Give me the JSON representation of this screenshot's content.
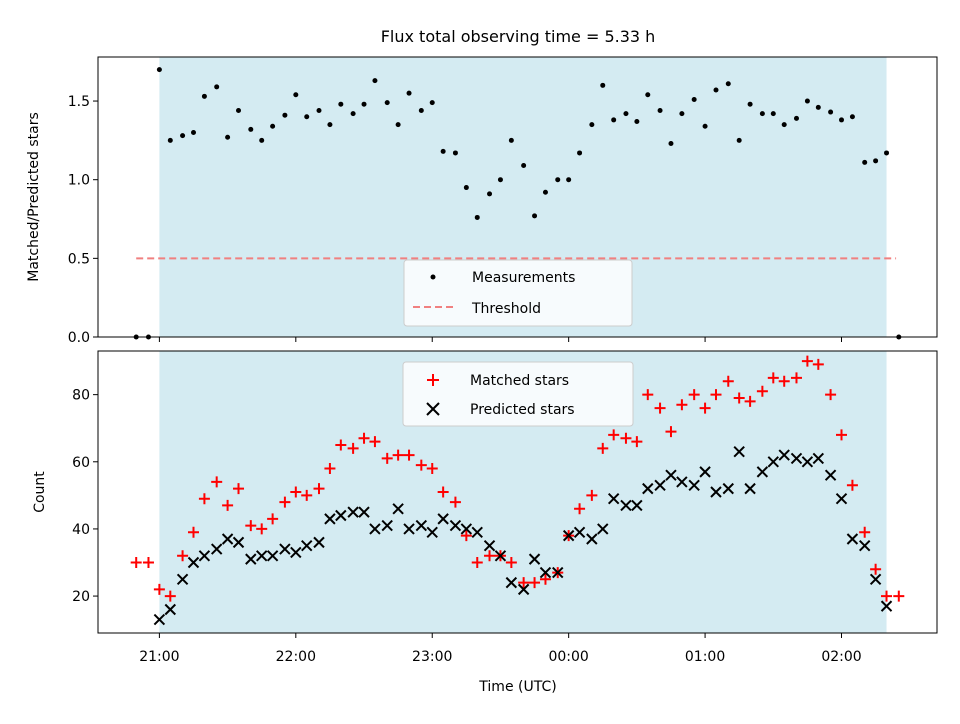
{
  "chart_data": {
    "title": "Flux total observing time = 5.33 h",
    "xlabel": "Time (UTC)",
    "x_tick_labels": [
      "21:00",
      "22:00",
      "23:00",
      "00:00",
      "01:00",
      "02:00"
    ],
    "x_tick_values_h": [
      21,
      22,
      23,
      24,
      25,
      26
    ],
    "xlim_h": [
      20.55,
      26.7
    ],
    "shaded_span_h": [
      21.0,
      26.33
    ],
    "shade_color": "#d4ebf2",
    "top": {
      "type": "scatter",
      "ylabel": "Matched/Predicted stars",
      "ylim": [
        0,
        1.78
      ],
      "y_ticks": [
        "0.0",
        "0.5",
        "1.0",
        "1.5"
      ],
      "y_tick_values": [
        0.0,
        0.5,
        1.0,
        1.5
      ],
      "legend_position": "lower-center",
      "threshold": {
        "name": "Threshold",
        "value": 0.5,
        "x_range_h": [
          20.83,
          26.4
        ],
        "color": "#f08080"
      },
      "measurements": {
        "name": "Measurements",
        "color": "#000000",
        "points": [
          [
            20.83,
            0.0
          ],
          [
            20.92,
            0.0
          ],
          [
            21.0,
            1.7
          ],
          [
            21.08,
            1.25
          ],
          [
            21.17,
            1.28
          ],
          [
            21.25,
            1.3
          ],
          [
            21.33,
            1.53
          ],
          [
            21.42,
            1.59
          ],
          [
            21.5,
            1.27
          ],
          [
            21.58,
            1.44
          ],
          [
            21.67,
            1.32
          ],
          [
            21.75,
            1.25
          ],
          [
            21.83,
            1.34
          ],
          [
            21.92,
            1.41
          ],
          [
            22.0,
            1.54
          ],
          [
            22.08,
            1.4
          ],
          [
            22.17,
            1.44
          ],
          [
            22.25,
            1.35
          ],
          [
            22.33,
            1.48
          ],
          [
            22.42,
            1.42
          ],
          [
            22.5,
            1.48
          ],
          [
            22.58,
            1.63
          ],
          [
            22.67,
            1.49
          ],
          [
            22.75,
            1.35
          ],
          [
            22.83,
            1.55
          ],
          [
            22.92,
            1.44
          ],
          [
            23.0,
            1.49
          ],
          [
            23.08,
            1.18
          ],
          [
            23.17,
            1.17
          ],
          [
            23.25,
            0.95
          ],
          [
            23.33,
            0.76
          ],
          [
            23.42,
            0.91
          ],
          [
            23.5,
            1.0
          ],
          [
            23.58,
            1.25
          ],
          [
            23.67,
            1.09
          ],
          [
            23.75,
            0.77
          ],
          [
            23.83,
            0.92
          ],
          [
            23.92,
            1.0
          ],
          [
            24.0,
            1.0
          ],
          [
            24.08,
            1.17
          ],
          [
            24.17,
            1.35
          ],
          [
            24.25,
            1.6
          ],
          [
            24.33,
            1.38
          ],
          [
            24.42,
            1.42
          ],
          [
            24.5,
            1.37
          ],
          [
            24.58,
            1.54
          ],
          [
            24.67,
            1.44
          ],
          [
            24.75,
            1.23
          ],
          [
            24.83,
            1.42
          ],
          [
            24.92,
            1.51
          ],
          [
            25.0,
            1.34
          ],
          [
            25.08,
            1.57
          ],
          [
            25.17,
            1.61
          ],
          [
            25.25,
            1.25
          ],
          [
            25.33,
            1.48
          ],
          [
            25.42,
            1.42
          ],
          [
            25.5,
            1.42
          ],
          [
            25.58,
            1.35
          ],
          [
            25.67,
            1.39
          ],
          [
            25.75,
            1.5
          ],
          [
            25.83,
            1.46
          ],
          [
            25.92,
            1.43
          ],
          [
            26.0,
            1.38
          ],
          [
            26.08,
            1.4
          ],
          [
            26.17,
            1.11
          ],
          [
            26.25,
            1.12
          ],
          [
            26.33,
            1.17
          ],
          [
            26.42,
            0.0
          ]
        ]
      }
    },
    "bottom": {
      "type": "scatter",
      "ylabel": "Count",
      "ylim": [
        9,
        93
      ],
      "y_ticks": [
        "20",
        "40",
        "60",
        "80"
      ],
      "y_tick_values": [
        20,
        40,
        60,
        80
      ],
      "legend_position": "upper-center",
      "matched": {
        "name": "Matched stars",
        "color": "#ff0000",
        "points": [
          [
            20.83,
            30
          ],
          [
            20.92,
            30
          ],
          [
            21.0,
            22
          ],
          [
            21.08,
            20
          ],
          [
            21.17,
            32
          ],
          [
            21.25,
            39
          ],
          [
            21.33,
            49
          ],
          [
            21.42,
            54
          ],
          [
            21.5,
            47
          ],
          [
            21.58,
            52
          ],
          [
            21.67,
            41
          ],
          [
            21.75,
            40
          ],
          [
            21.83,
            43
          ],
          [
            21.92,
            48
          ],
          [
            22.0,
            51
          ],
          [
            22.08,
            50
          ],
          [
            22.17,
            52
          ],
          [
            22.25,
            58
          ],
          [
            22.33,
            65
          ],
          [
            22.42,
            64
          ],
          [
            22.5,
            67
          ],
          [
            22.58,
            66
          ],
          [
            22.67,
            61
          ],
          [
            22.75,
            62
          ],
          [
            22.83,
            62
          ],
          [
            22.92,
            59
          ],
          [
            23.0,
            58
          ],
          [
            23.08,
            51
          ],
          [
            23.17,
            48
          ],
          [
            23.25,
            38
          ],
          [
            23.33,
            30
          ],
          [
            23.42,
            32
          ],
          [
            23.5,
            32
          ],
          [
            23.58,
            30
          ],
          [
            23.67,
            24
          ],
          [
            23.75,
            24
          ],
          [
            23.83,
            25
          ],
          [
            23.92,
            27
          ],
          [
            24.0,
            38
          ],
          [
            24.08,
            46
          ],
          [
            24.17,
            50
          ],
          [
            24.25,
            64
          ],
          [
            24.33,
            68
          ],
          [
            24.42,
            67
          ],
          [
            24.5,
            66
          ],
          [
            24.58,
            80
          ],
          [
            24.67,
            76
          ],
          [
            24.75,
            69
          ],
          [
            24.83,
            77
          ],
          [
            24.92,
            80
          ],
          [
            25.0,
            76
          ],
          [
            25.08,
            80
          ],
          [
            25.17,
            84
          ],
          [
            25.25,
            79
          ],
          [
            25.33,
            78
          ],
          [
            25.42,
            81
          ],
          [
            25.5,
            85
          ],
          [
            25.58,
            84
          ],
          [
            25.67,
            85
          ],
          [
            25.75,
            90
          ],
          [
            25.83,
            89
          ],
          [
            25.92,
            80
          ],
          [
            26.0,
            68
          ],
          [
            26.08,
            53
          ],
          [
            26.17,
            39
          ],
          [
            26.25,
            28
          ],
          [
            26.33,
            20
          ],
          [
            26.42,
            20
          ]
        ]
      },
      "predicted": {
        "name": "Predicted stars",
        "color": "#000000",
        "points": [
          [
            21.0,
            13
          ],
          [
            21.08,
            16
          ],
          [
            21.17,
            25
          ],
          [
            21.25,
            30
          ],
          [
            21.33,
            32
          ],
          [
            21.42,
            34
          ],
          [
            21.5,
            37
          ],
          [
            21.58,
            36
          ],
          [
            21.67,
            31
          ],
          [
            21.75,
            32
          ],
          [
            21.83,
            32
          ],
          [
            21.92,
            34
          ],
          [
            22.0,
            33
          ],
          [
            22.08,
            35
          ],
          [
            22.17,
            36
          ],
          [
            22.25,
            43
          ],
          [
            22.33,
            44
          ],
          [
            22.42,
            45
          ],
          [
            22.5,
            45
          ],
          [
            22.58,
            40
          ],
          [
            22.67,
            41
          ],
          [
            22.75,
            46
          ],
          [
            22.83,
            40
          ],
          [
            22.92,
            41
          ],
          [
            23.0,
            39
          ],
          [
            23.08,
            43
          ],
          [
            23.17,
            41
          ],
          [
            23.25,
            40
          ],
          [
            23.33,
            39
          ],
          [
            23.42,
            35
          ],
          [
            23.5,
            32
          ],
          [
            23.58,
            24
          ],
          [
            23.67,
            22
          ],
          [
            23.75,
            31
          ],
          [
            23.83,
            27
          ],
          [
            23.92,
            27
          ],
          [
            24.0,
            38
          ],
          [
            24.08,
            39
          ],
          [
            24.17,
            37
          ],
          [
            24.25,
            40
          ],
          [
            24.33,
            49
          ],
          [
            24.42,
            47
          ],
          [
            24.5,
            47
          ],
          [
            24.58,
            52
          ],
          [
            24.67,
            53
          ],
          [
            24.75,
            56
          ],
          [
            24.83,
            54
          ],
          [
            24.92,
            53
          ],
          [
            25.0,
            57
          ],
          [
            25.08,
            51
          ],
          [
            25.17,
            52
          ],
          [
            25.25,
            63
          ],
          [
            25.33,
            52
          ],
          [
            25.42,
            57
          ],
          [
            25.5,
            60
          ],
          [
            25.58,
            62
          ],
          [
            25.67,
            61
          ],
          [
            25.75,
            60
          ],
          [
            25.83,
            61
          ],
          [
            25.92,
            56
          ],
          [
            26.0,
            49
          ],
          [
            26.08,
            37
          ],
          [
            26.17,
            35
          ],
          [
            26.25,
            25
          ],
          [
            26.33,
            17
          ]
        ]
      }
    }
  }
}
